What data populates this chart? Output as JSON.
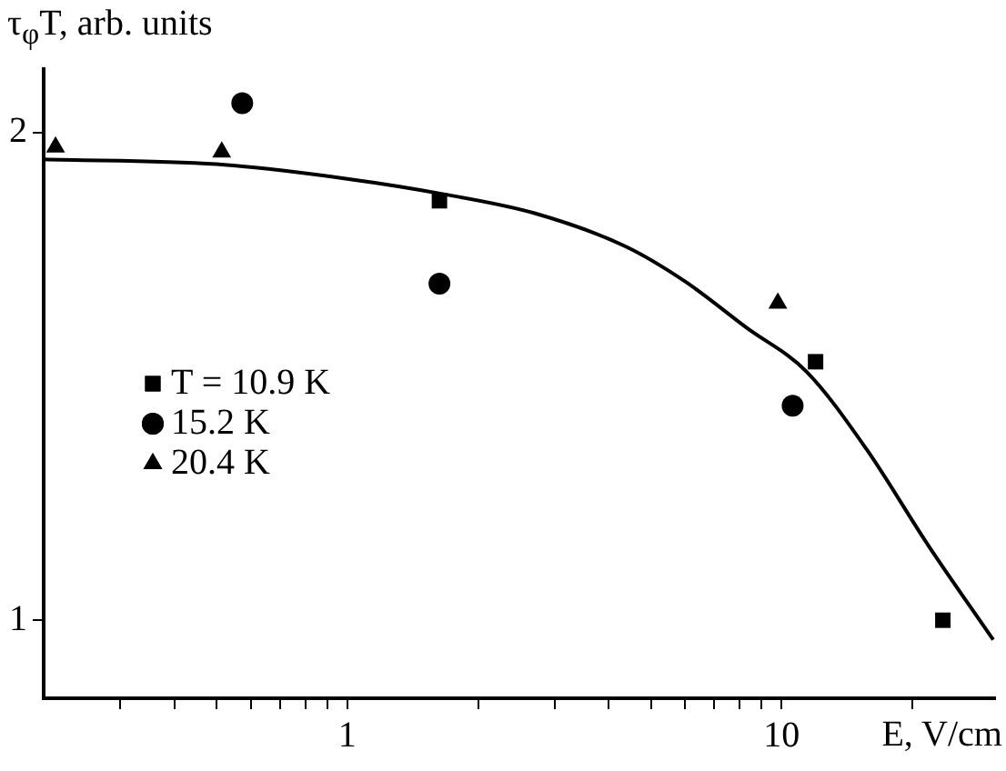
{
  "chart_data": {
    "type": "scatter",
    "ylabel": "τ$_{φ}$T, arb. units",
    "xlabel": "E, V/cm",
    "log": "x",
    "xlim": [
      0.2,
      31
    ],
    "ylim": [
      0.84,
      2.13
    ],
    "xticks": [
      {
        "value": 0.3,
        "label": null
      },
      {
        "value": 0.4,
        "label": null
      },
      {
        "value": 0.5,
        "label": null
      },
      {
        "value": 0.6,
        "label": null
      },
      {
        "value": 0.7,
        "label": null
      },
      {
        "value": 0.8,
        "label": null
      },
      {
        "value": 0.9,
        "label": null
      },
      1,
      {
        "value": 2,
        "label": null
      },
      {
        "value": 3,
        "label": null
      },
      {
        "value": 4,
        "label": null
      },
      {
        "value": 5,
        "label": null
      },
      {
        "value": 6,
        "label": null
      },
      {
        "value": 7,
        "label": null
      },
      {
        "value": 8,
        "label": null
      },
      {
        "value": 9,
        "label": null
      },
      10,
      {
        "value": 20,
        "label": null
      }
    ],
    "yticks": [
      1,
      2
    ],
    "grid": false,
    "legend": "left",
    "series": [
      {
        "name": "T = 10.9 K",
        "color": "#000000",
        "marker": "square",
        "x": [
          1.63,
          11.97,
          23.5
        ],
        "values": [
          1.86,
          1.53,
          1.0
        ]
      },
      {
        "name": "15.2 K",
        "color": "#000000",
        "marker": "circle",
        "x": [
          0.573,
          1.63,
          10.6
        ],
        "values": [
          2.06,
          1.69,
          1.44
        ]
      },
      {
        "name": "20.4 K",
        "color": "#000000",
        "marker": "triangle",
        "x": [
          0.213,
          0.514,
          9.8
        ],
        "values": [
          1.97,
          1.96,
          1.65
        ]
      },
      {
        "type": "line",
        "color": "#000000",
        "marker": "none",
        "line_style": "solid",
        "x": [
          0.2,
          0.5,
          1,
          1.68,
          2.71,
          4.38,
          6.03,
          8.3,
          11.4,
          15.7,
          21.7,
          30.7
        ],
        "values": [
          1.945,
          1.935,
          1.905,
          1.873,
          1.834,
          1.766,
          1.693,
          1.6,
          1.51,
          1.35,
          1.155,
          0.96
        ]
      }
    ]
  }
}
